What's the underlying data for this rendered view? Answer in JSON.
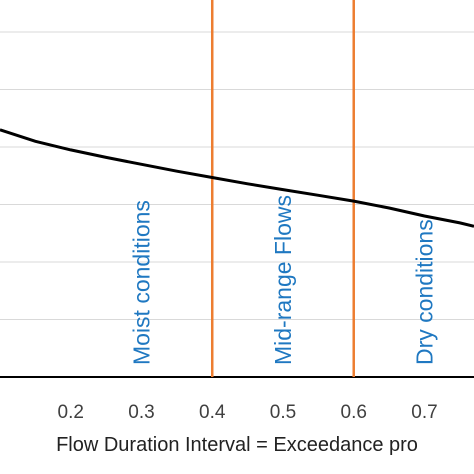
{
  "chart_data": {
    "type": "line",
    "xlabel": "Flow Duration Interval = Exceedance pro",
    "x_ticks": [
      "0.2",
      "0.3",
      "0.4",
      "0.5",
      "0.6",
      "0.7"
    ],
    "xlim": [
      0.1,
      0.77
    ],
    "grid": "horizontal",
    "series": [
      {
        "color": "#000000",
        "x": [
          0.1,
          0.15,
          0.2,
          0.25,
          0.3,
          0.35,
          0.4,
          0.45,
          0.5,
          0.55,
          0.6,
          0.65,
          0.7,
          0.75,
          0.77
        ],
        "y": [
          0.63,
          0.61,
          0.595,
          0.582,
          0.57,
          0.558,
          0.547,
          0.536,
          0.526,
          0.516,
          0.506,
          0.494,
          0.48,
          0.468,
          0.462
        ]
      }
    ],
    "ylim": [
      0.2,
      0.8
    ],
    "vlines": [
      {
        "x": 0.4,
        "color": "#ed7d31"
      },
      {
        "x": 0.6,
        "color": "#ed7d31"
      }
    ],
    "zones": [
      {
        "label": "Moist conditions",
        "x": 0.3
      },
      {
        "label": "Mid-range Flows",
        "x": 0.5
      },
      {
        "label": "Dry conditions",
        "x": 0.7
      }
    ]
  },
  "colors": {
    "line": "#000000",
    "boundary": "#ed7d31",
    "zone_text": "#1f78c1",
    "grid": "#d9d9d9"
  }
}
